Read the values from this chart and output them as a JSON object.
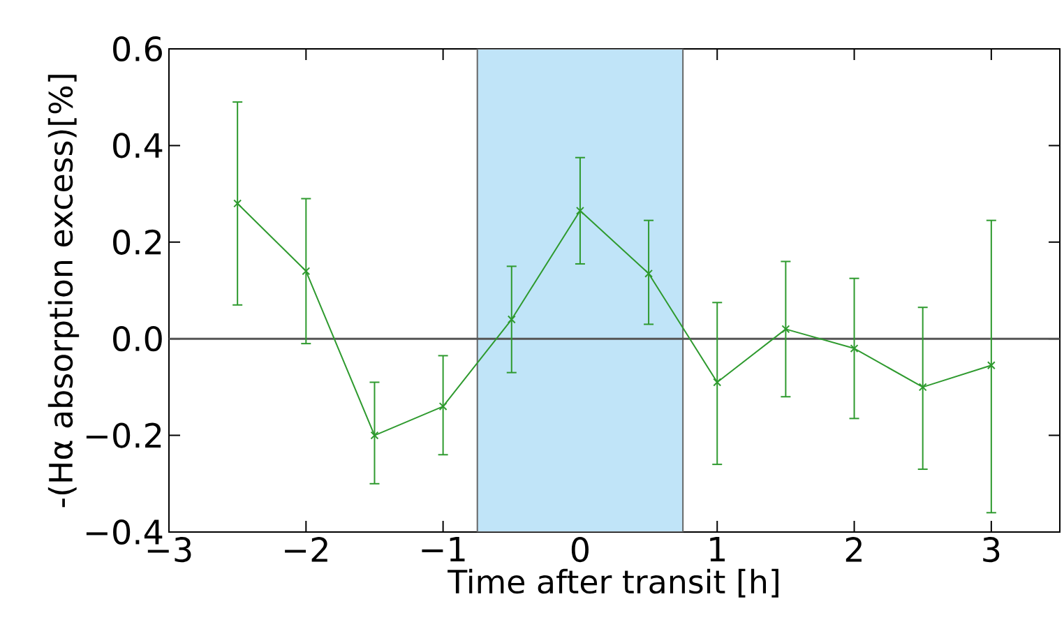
{
  "chart_data": {
    "type": "line",
    "xlabel": "Time after transit [h]",
    "ylabel": "-(Hα absorption excess)[%]",
    "x": [
      -2.5,
      -2,
      -1.5,
      -1,
      -0.5,
      0,
      0.5,
      1,
      1.5,
      2,
      2.5,
      3
    ],
    "series": [
      {
        "color": "#2e9a2e",
        "values": [
          0.28,
          0.14,
          -0.2,
          -0.14,
          0.04,
          0.265,
          0.135,
          -0.09,
          0.02,
          -0.02,
          -0.1,
          -0.055
        ],
        "errors": [
          [
            0.07,
            0.49
          ],
          [
            -0.01,
            0.29
          ],
          [
            -0.3,
            -0.09
          ],
          [
            -0.24,
            -0.035
          ],
          [
            -0.07,
            0.15
          ],
          [
            0.155,
            0.375
          ],
          [
            0.03,
            0.245
          ],
          [
            -0.26,
            0.075
          ],
          [
            -0.12,
            0.16
          ],
          [
            -0.165,
            0.125
          ],
          [
            -0.27,
            0.065
          ],
          [
            -0.36,
            0.245
          ]
        ]
      }
    ],
    "marker": "cross",
    "line_style": "solid",
    "grid": false,
    "xlim": [
      -3,
      3.5
    ],
    "ylim": [
      -0.4,
      0.6
    ],
    "xticks": [
      {
        "value": -3,
        "label": "−3"
      },
      {
        "value": -2,
        "label": "−2"
      },
      {
        "value": -1,
        "label": "−1"
      },
      {
        "value": 0,
        "label": "0"
      },
      {
        "value": 1,
        "label": "1"
      },
      {
        "value": 2,
        "label": "2"
      },
      {
        "value": 3,
        "label": "3"
      }
    ],
    "yticks": [
      {
        "value": -0.4,
        "label": "−0.4"
      },
      {
        "value": -0.2,
        "label": "−0.2"
      },
      {
        "value": 0,
        "label": "0.0"
      },
      {
        "value": 0.2,
        "label": "0.2"
      },
      {
        "value": 0.4,
        "label": "0.4"
      },
      {
        "value": 0.6,
        "label": "0.6"
      }
    ],
    "ref_lines": [
      {
        "axis": "y",
        "value": 0,
        "color": "#555555"
      }
    ],
    "bands": [
      {
        "axis": "x",
        "from": -0.75,
        "to": 0.75,
        "color": "#c0e4f8"
      }
    ]
  }
}
